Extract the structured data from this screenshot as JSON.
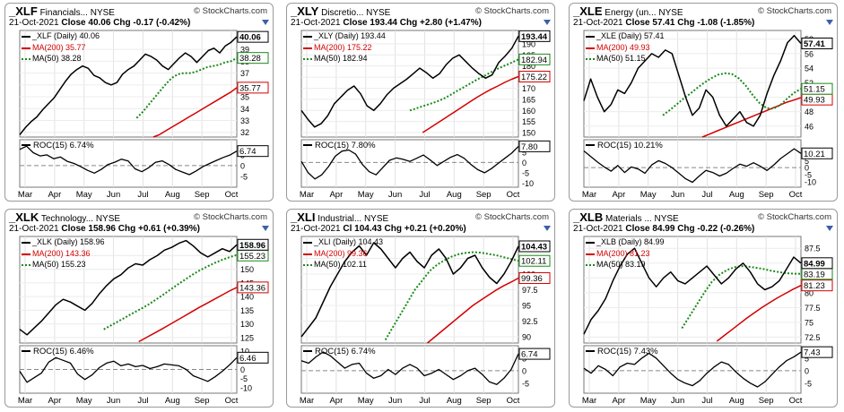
{
  "watermark": "StockCharts.com",
  "colors": {
    "price": "#000000",
    "ma200": "#d40000",
    "ma50": "#1a8a1a",
    "roc": "#000000",
    "zero": "#888888"
  },
  "chart_data": [
    {
      "type": "line",
      "symbol": "XLF",
      "name": "Financials...",
      "exchange": "NYSE",
      "date": "21-Oct-2021",
      "close_label": "Close 40.06",
      "chg_label": "Chg -0.17 (-0.42%)",
      "legend": {
        "price": "_XLF (Daily) 40.06",
        "ma200": "MA(200) 35.77",
        "ma50": "MA(50) 38.28"
      },
      "months": [
        "Mar",
        "Apr",
        "May",
        "Jun",
        "Jul",
        "Aug",
        "Sep",
        "Oct"
      ],
      "price_axis": {
        "ticks": [
          32,
          33,
          34,
          35,
          36,
          37,
          38,
          39
        ],
        "ylim": [
          31.6,
          40.6
        ]
      },
      "price": [
        31.8,
        32.4,
        32.9,
        33.3,
        33.9,
        34.4,
        34.9,
        35.6,
        36.3,
        36.9,
        37.3,
        37.6,
        37.4,
        36.8,
        36.6,
        36.2,
        36.0,
        36.2,
        36.9,
        37.3,
        37.6,
        38.1,
        38.6,
        38.4,
        38.1,
        37.6,
        37.3,
        37.8,
        38.3,
        38.7,
        38.4,
        37.9,
        38.4,
        38.9,
        39.1,
        38.7,
        39.3,
        39.6,
        40.06
      ],
      "ma200": [
        31.6,
        31.8,
        32.1,
        32.4,
        32.7,
        33.0,
        33.3,
        33.6,
        33.9,
        34.2,
        34.5,
        34.8,
        35.1,
        35.4,
        35.77
      ],
      "ma50": [
        33.2,
        33.7,
        34.3,
        34.9,
        35.5,
        36.1,
        36.6,
        36.9,
        37.0,
        37.0,
        37.1,
        37.3,
        37.5,
        37.6,
        37.7,
        37.9,
        38.0,
        38.28
      ],
      "price_labels": {
        "close": "40.06",
        "ma50": "38.28",
        "ma200": "35.77"
      },
      "roc_legend": "ROC(15) 6.74%",
      "roc_axis": {
        "ticks": [
          5,
          0,
          -5
        ],
        "ylim": [
          -10,
          12
        ]
      },
      "roc": [
        7.5,
        9.0,
        6.0,
        4.5,
        5.0,
        3.2,
        4.0,
        2.0,
        1.0,
        -0.5,
        -2.2,
        -3.5,
        -1.8,
        0.5,
        1.6,
        3.0,
        2.1,
        -1.5,
        -2.8,
        -1.0,
        1.5,
        2.2,
        0.5,
        -1.8,
        -3.0,
        -4.2,
        -2.5,
        -0.5,
        1.0,
        2.4,
        3.8,
        4.9,
        6.74
      ],
      "roc_label": "6.74"
    },
    {
      "type": "line",
      "symbol": "XLY",
      "name": "Discretio...",
      "exchange": "NYSE",
      "date": "21-Oct-2021",
      "close_label": "Close 193.44",
      "chg_label": "Chg +2.80 (+1.47%)",
      "legend": {
        "price": "_XLY (Daily) 193.44",
        "ma200": "MA(200) 175.22",
        "ma50": "MA(50) 182.94"
      },
      "months": [
        "Mar",
        "Apr",
        "May",
        "Jun",
        "Jul",
        "Aug",
        "Sep",
        "Oct"
      ],
      "price_axis": {
        "ticks": [
          150,
          155,
          160,
          165,
          170,
          175,
          180,
          185,
          190
        ],
        "ylim": [
          148,
          196
        ]
      },
      "price": [
        160.0,
        156.0,
        152.5,
        154.0,
        157.5,
        163.0,
        166.0,
        169.0,
        171.0,
        167.5,
        162.0,
        160.0,
        163.0,
        167.0,
        170.0,
        172.0,
        174.0,
        176.5,
        179.0,
        177.0,
        174.5,
        176.5,
        180.5,
        183.5,
        185.0,
        182.0,
        179.0,
        176.5,
        174.5,
        176.0,
        181.5,
        184.5,
        188.0,
        193.44
      ],
      "ma200": [
        150.0,
        152.0,
        154.0,
        156.0,
        158.0,
        160.0,
        162.0,
        164.0,
        166.0,
        167.8,
        169.5,
        171.0,
        172.6,
        174.0,
        175.22
      ],
      "ma50": [
        160.0,
        161.0,
        162.0,
        163.0,
        164.0,
        165.3,
        167.0,
        168.8,
        170.5,
        172.3,
        174.0,
        175.6,
        177.3,
        178.8,
        180.2,
        181.5,
        182.94
      ],
      "price_labels": {
        "close": "193.44",
        "ma50": "182.94",
        "ma200": "175.22"
      },
      "roc_legend": "ROC(15) 7.80%",
      "roc_axis": {
        "ticks": [
          5,
          0,
          -5,
          -10
        ],
        "ylim": [
          -12,
          11
        ]
      },
      "roc": [
        0.5,
        -5.0,
        -8.0,
        -6.0,
        -2.0,
        3.0,
        5.5,
        6.0,
        4.0,
        -1.0,
        -4.5,
        -6.0,
        -2.5,
        1.0,
        2.2,
        1.5,
        0.5,
        2.0,
        3.6,
        1.2,
        -1.5,
        0.5,
        2.5,
        3.8,
        2.0,
        -1.0,
        -3.5,
        -5.0,
        -3.0,
        -0.5,
        2.0,
        4.5,
        7.8
      ],
      "roc_label": "7.80"
    },
    {
      "type": "line",
      "symbol": "XLE",
      "name": "Energy (un...",
      "exchange": "NYSE",
      "date": "21-Oct-2021",
      "close_label": "Close 57.41",
      "chg_label": "Chg -1.08 (-1.85%)",
      "legend": {
        "price": "_XLE (Daily) 57.41",
        "ma200": "MA(200) 49.93",
        "ma50": "MA(50) 51.15"
      },
      "months": [
        "Mar",
        "Apr",
        "May",
        "Jun",
        "Jul",
        "Aug",
        "Sep",
        "Oct"
      ],
      "price_axis": {
        "ticks": [
          46,
          48,
          50,
          52,
          54,
          56,
          58
        ],
        "ylim": [
          44.5,
          59.2
        ]
      },
      "price": [
        49.5,
        52.5,
        50.0,
        48.0,
        49.0,
        51.0,
        50.5,
        52.0,
        54.0,
        55.0,
        56.0,
        55.5,
        56.5,
        56.0,
        53.0,
        50.0,
        47.5,
        48.5,
        51.0,
        50.0,
        47.5,
        46.0,
        47.0,
        48.0,
        46.5,
        46.0,
        47.5,
        50.5,
        53.0,
        55.0,
        57.5,
        58.5,
        57.41
      ],
      "ma200": [
        44.5,
        44.9,
        45.3,
        45.7,
        46.1,
        46.5,
        46.9,
        47.3,
        47.7,
        48.1,
        48.5,
        48.9,
        49.3,
        49.6,
        49.93
      ],
      "ma50": [
        47.5,
        48.2,
        49.0,
        49.8,
        50.5,
        51.3,
        52.0,
        52.6,
        53.1,
        53.3,
        53.2,
        52.6,
        51.6,
        50.3,
        49.2,
        48.5,
        48.4,
        48.9,
        49.8,
        50.6,
        51.15
      ],
      "price_labels": {
        "close": "57.41",
        "ma50": "51.15",
        "ma200": "49.93"
      },
      "roc_legend": "ROC(15) 10.21%",
      "roc_axis": {
        "ticks": [
          10,
          5,
          0,
          -5,
          -10
        ],
        "ylim": [
          -14,
          20
        ]
      },
      "roc": [
        12.0,
        8.0,
        4.0,
        0.5,
        -2.5,
        1.5,
        -3.5,
        0.5,
        -1.0,
        -4.0,
        2.0,
        5.0,
        3.0,
        0.0,
        -4.0,
        -8.0,
        -10.5,
        -6.0,
        -2.0,
        -3.5,
        -6.0,
        -4.0,
        -0.5,
        2.5,
        1.0,
        3.5,
        1.0,
        -2.0,
        2.0,
        6.5,
        10.0,
        13.5,
        10.21
      ],
      "roc_label": "10.21"
    },
    {
      "type": "line",
      "symbol": "XLK",
      "name": "Technology...",
      "exchange": "NYSE",
      "date": "21-Oct-2021",
      "close_label": "Close 158.96",
      "chg_label": "Chg +0.61 (+0.39%)",
      "legend": {
        "price": "_XLK (Daily) 158.96",
        "ma200": "MA(200) 143.36",
        "ma50": "MA(50) 155.23"
      },
      "months": [
        "Mar",
        "Apr",
        "May",
        "Jun",
        "Jul",
        "Aug",
        "Sep",
        "Oct"
      ],
      "price_axis": {
        "ticks": [
          125,
          130,
          135,
          140,
          145,
          150,
          155
        ],
        "ylim": [
          123,
          162
        ]
      },
      "price": [
        128.0,
        126.0,
        128.5,
        131.0,
        134.0,
        137.0,
        139.0,
        138.0,
        136.5,
        135.0,
        137.5,
        141.0,
        144.0,
        146.5,
        148.0,
        150.5,
        152.0,
        151.5,
        153.5,
        155.0,
        157.0,
        158.0,
        159.5,
        160.5,
        158.5,
        156.0,
        154.5,
        156.0,
        157.5,
        156.5,
        158.96
      ],
      "ma200": [
        123.5,
        125.0,
        126.5,
        128.0,
        129.6,
        131.2,
        132.8,
        134.4,
        136.0,
        137.5,
        139.0,
        140.5,
        142.0,
        143.36
      ],
      "ma50": [
        128.0,
        129.5,
        131.0,
        132.5,
        134.0,
        135.5,
        137.0,
        138.8,
        140.6,
        142.5,
        144.4,
        146.2,
        148.0,
        149.6,
        151.0,
        152.3,
        153.4,
        154.4,
        155.23
      ],
      "price_labels": {
        "close": "158.96",
        "ma50": "155.23",
        "ma200": "143.36"
      },
      "roc_legend": "ROC(15) 6.46%",
      "roc_axis": {
        "ticks": [
          10,
          5,
          0,
          -5,
          -10
        ],
        "ylim": [
          -13,
          13
        ]
      },
      "roc": [
        -1.0,
        -7.0,
        -4.5,
        -2.0,
        4.0,
        6.5,
        5.0,
        3.5,
        -2.5,
        -5.5,
        -3.0,
        1.0,
        3.5,
        4.5,
        2.0,
        3.0,
        1.5,
        2.2,
        0.5,
        1.5,
        3.0,
        2.5,
        2.0,
        0.0,
        -3.5,
        -5.0,
        -6.5,
        -4.0,
        -1.0,
        2.5,
        6.46
      ],
      "roc_label": "6.46"
    },
    {
      "type": "line",
      "symbol": "XLI",
      "name": "Industrial...",
      "exchange": "NYSE",
      "date": "21-Oct-2021",
      "close_label": "Cl 104.43",
      "chg_label": "Chg +0.21 (+0.20%)",
      "legend": {
        "price": "_XLI (Daily) 104.43",
        "ma200": "MA(200) 99.36",
        "ma50": "MA(50) 102.11"
      },
      "months": [
        "Mar",
        "Apr",
        "May",
        "Jun",
        "Jul",
        "Aug",
        "Sep",
        "Oct"
      ],
      "price_axis": {
        "ticks": [
          90.0,
          92.5,
          95.0,
          97.5,
          100.0,
          102.5
        ],
        "ylim": [
          89,
          106
        ]
      },
      "price": [
        90.0,
        91.5,
        93.0,
        95.5,
        98.0,
        100.0,
        102.0,
        103.5,
        104.5,
        103.0,
        105.0,
        104.0,
        102.5,
        101.0,
        102.5,
        103.5,
        102.0,
        101.0,
        103.0,
        104.0,
        102.5,
        100.0,
        101.0,
        102.5,
        103.0,
        101.0,
        99.5,
        98.5,
        100.0,
        102.0,
        104.43
      ],
      "ma200": [
        89.0,
        90.0,
        91.0,
        92.0,
        93.0,
        94.0,
        95.0,
        95.8,
        96.6,
        97.4,
        98.1,
        98.7,
        99.36
      ],
      "ma50": [
        89.5,
        91.5,
        93.5,
        95.5,
        97.5,
        99.0,
        100.5,
        101.5,
        102.2,
        102.8,
        103.2,
        103.4,
        103.5,
        103.4,
        103.2,
        103.0,
        102.7,
        102.4,
        102.11
      ],
      "price_labels": {
        "close": "104.43",
        "ma50": "102.11",
        "ma200": "99.36"
      },
      "roc_legend": "ROC(15) 6.74%",
      "roc_axis": {
        "ticks": [
          5,
          0,
          -5
        ],
        "ylim": [
          -9,
          10
        ]
      },
      "roc": [
        4.0,
        3.0,
        5.5,
        7.5,
        6.0,
        3.5,
        1.0,
        2.5,
        3.0,
        -1.0,
        -3.0,
        -2.0,
        0.5,
        -1.5,
        1.0,
        2.5,
        1.0,
        -2.0,
        -1.0,
        0.5,
        -1.5,
        -3.5,
        -2.0,
        0.0,
        1.0,
        -1.5,
        -4.5,
        -5.5,
        -3.0,
        0.5,
        6.74
      ],
      "roc_label": "6.74"
    },
    {
      "type": "line",
      "symbol": "XLB",
      "name": "Materials ...",
      "exchange": "NYSE",
      "date": "21-Oct-2021",
      "close_label": "Close 84.99",
      "chg_label": "Chg -0.22 (-0.26%)",
      "legend": {
        "price": "_XLB (Daily) 84.99",
        "ma200": "MA(200) 81.23",
        "ma50": "MA(50) 83.19"
      },
      "months": [
        "Mar",
        "Apr",
        "May",
        "Jun",
        "Jul",
        "Aug",
        "Sep",
        "Oct"
      ],
      "price_axis": {
        "ticks": [
          72.5,
          75.0,
          77.5,
          80.0,
          82.5,
          85.0,
          87.5
        ],
        "ylim": [
          71.5,
          89.5
        ]
      },
      "price": [
        73.0,
        75.5,
        77.0,
        79.0,
        82.0,
        84.5,
        86.5,
        87.5,
        85.0,
        82.5,
        81.0,
        82.5,
        83.5,
        82.0,
        81.5,
        82.5,
        83.5,
        84.5,
        83.0,
        81.5,
        82.5,
        84.0,
        85.0,
        83.5,
        81.5,
        80.5,
        81.0,
        82.0,
        84.0,
        86.0,
        84.99
      ],
      "ma200": [
        71.8,
        72.8,
        73.8,
        74.8,
        75.8,
        76.7,
        77.6,
        78.4,
        79.2,
        79.9,
        80.6,
        81.23
      ],
      "ma50": [
        74.0,
        76.0,
        78.0,
        80.0,
        81.8,
        83.0,
        83.8,
        84.3,
        84.5,
        84.4,
        84.2,
        84.0,
        83.7,
        83.5,
        83.3,
        83.2,
        83.19
      ],
      "price_labels": {
        "close": "84.99",
        "ma50": "83.19",
        "ma200": "81.23"
      },
      "roc_legend": "ROC(15) 7.43%",
      "roc_axis": {
        "ticks": [
          5,
          0,
          -5
        ],
        "ylim": [
          -9,
          10
        ]
      },
      "roc": [
        1.0,
        -1.0,
        2.0,
        0.5,
        -2.0,
        1.5,
        3.0,
        2.5,
        5.0,
        7.0,
        5.0,
        2.0,
        -1.0,
        -3.5,
        -5.0,
        -6.0,
        -4.0,
        -1.0,
        1.5,
        3.5,
        2.5,
        -0.5,
        -3.0,
        -5.0,
        -6.5,
        -4.5,
        -1.5,
        1.5,
        4.0,
        5.5,
        7.43
      ],
      "roc_label": "7.43"
    }
  ]
}
